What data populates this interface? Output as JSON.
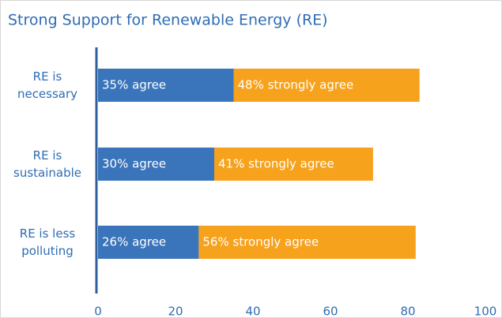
{
  "chart_data": {
    "type": "stacked_barh",
    "title": "Strong Support for Renewable Energy (RE)",
    "categories": [
      "RE is\nnecessary",
      "RE is\nsustainable",
      "RE is less\npolluting"
    ],
    "series": [
      {
        "color": "#3a74ba",
        "values": [
          35,
          30,
          26
        ],
        "value_labels": [
          "35% agree",
          "30% agree",
          "26% agree"
        ]
      },
      {
        "color": "#f7a21c",
        "values": [
          48,
          41,
          56
        ],
        "value_labels": [
          "48% strongly agree",
          "41% strongly agree",
          "56% strongly agree"
        ]
      }
    ],
    "xlim": [
      0,
      100
    ],
    "xticks": [
      0,
      20,
      40,
      60,
      80,
      100
    ]
  }
}
